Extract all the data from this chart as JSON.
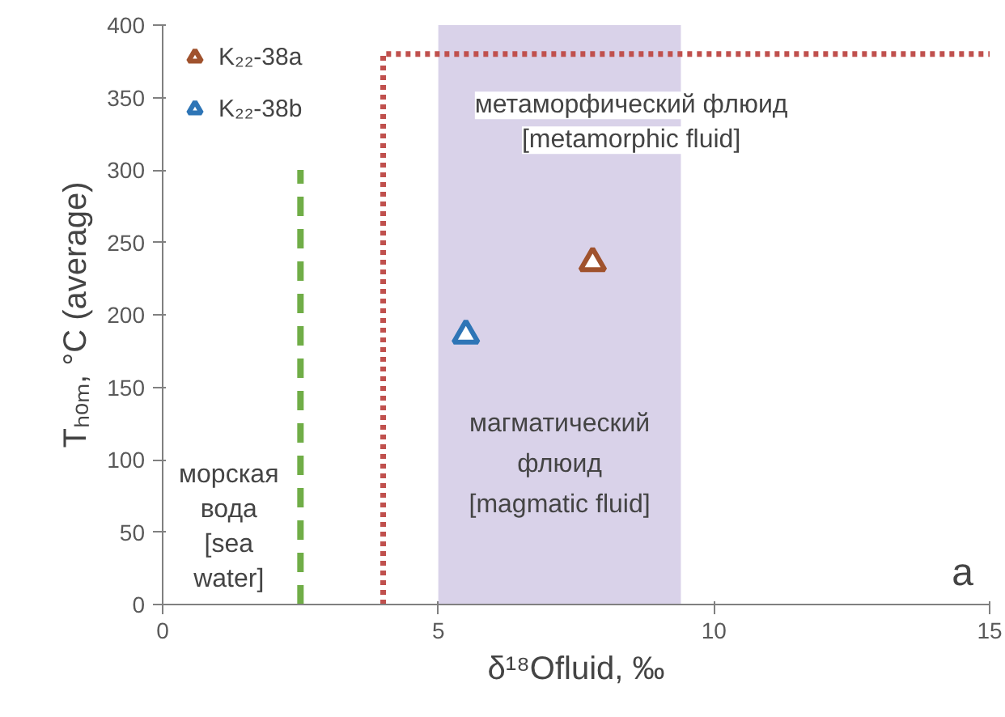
{
  "chart_data": {
    "type": "scatter",
    "xlabel": "δ¹⁸Ofluid, ‰",
    "ylabel": "Tₕₒₘ, °C (average)",
    "xlim": [
      0,
      15
    ],
    "ylim": [
      0,
      400
    ],
    "xticks": [
      0,
      5,
      10,
      15
    ],
    "yticks": [
      0,
      50,
      100,
      150,
      200,
      250,
      300,
      350,
      400
    ],
    "grid": false,
    "legend": "top left",
    "series": [
      {
        "name": "K₂₂-38a",
        "color": "#a0522d",
        "marker": "triangle",
        "x": [
          7.8
        ],
        "values": [
          236
        ]
      },
      {
        "name": "K₂₂-38b",
        "color": "#2e75b6",
        "marker": "triangle",
        "x": [
          5.5
        ],
        "values": [
          186
        ]
      },
      {
        "type": "line",
        "color": "#c0504d",
        "marker": "none",
        "line_style": "dotted",
        "x": [
          4,
          4,
          15
        ],
        "values": [
          0,
          380,
          380
        ]
      },
      {
        "type": "line",
        "color": "#70ad47",
        "marker": "none",
        "line_style": "dashed",
        "x": [
          2.5,
          2.5
        ],
        "values": [
          0,
          300
        ]
      }
    ],
    "bands": [
      {
        "axis": "x",
        "from": 5,
        "to": 9.4,
        "label": "магматический флюид [magmatic fluid]",
        "color": "#d9d2e9"
      }
    ],
    "annotations": [
      "метаморфический флюид [metamorphic fluid]",
      "морская вода [sea water]",
      "a"
    ]
  }
}
